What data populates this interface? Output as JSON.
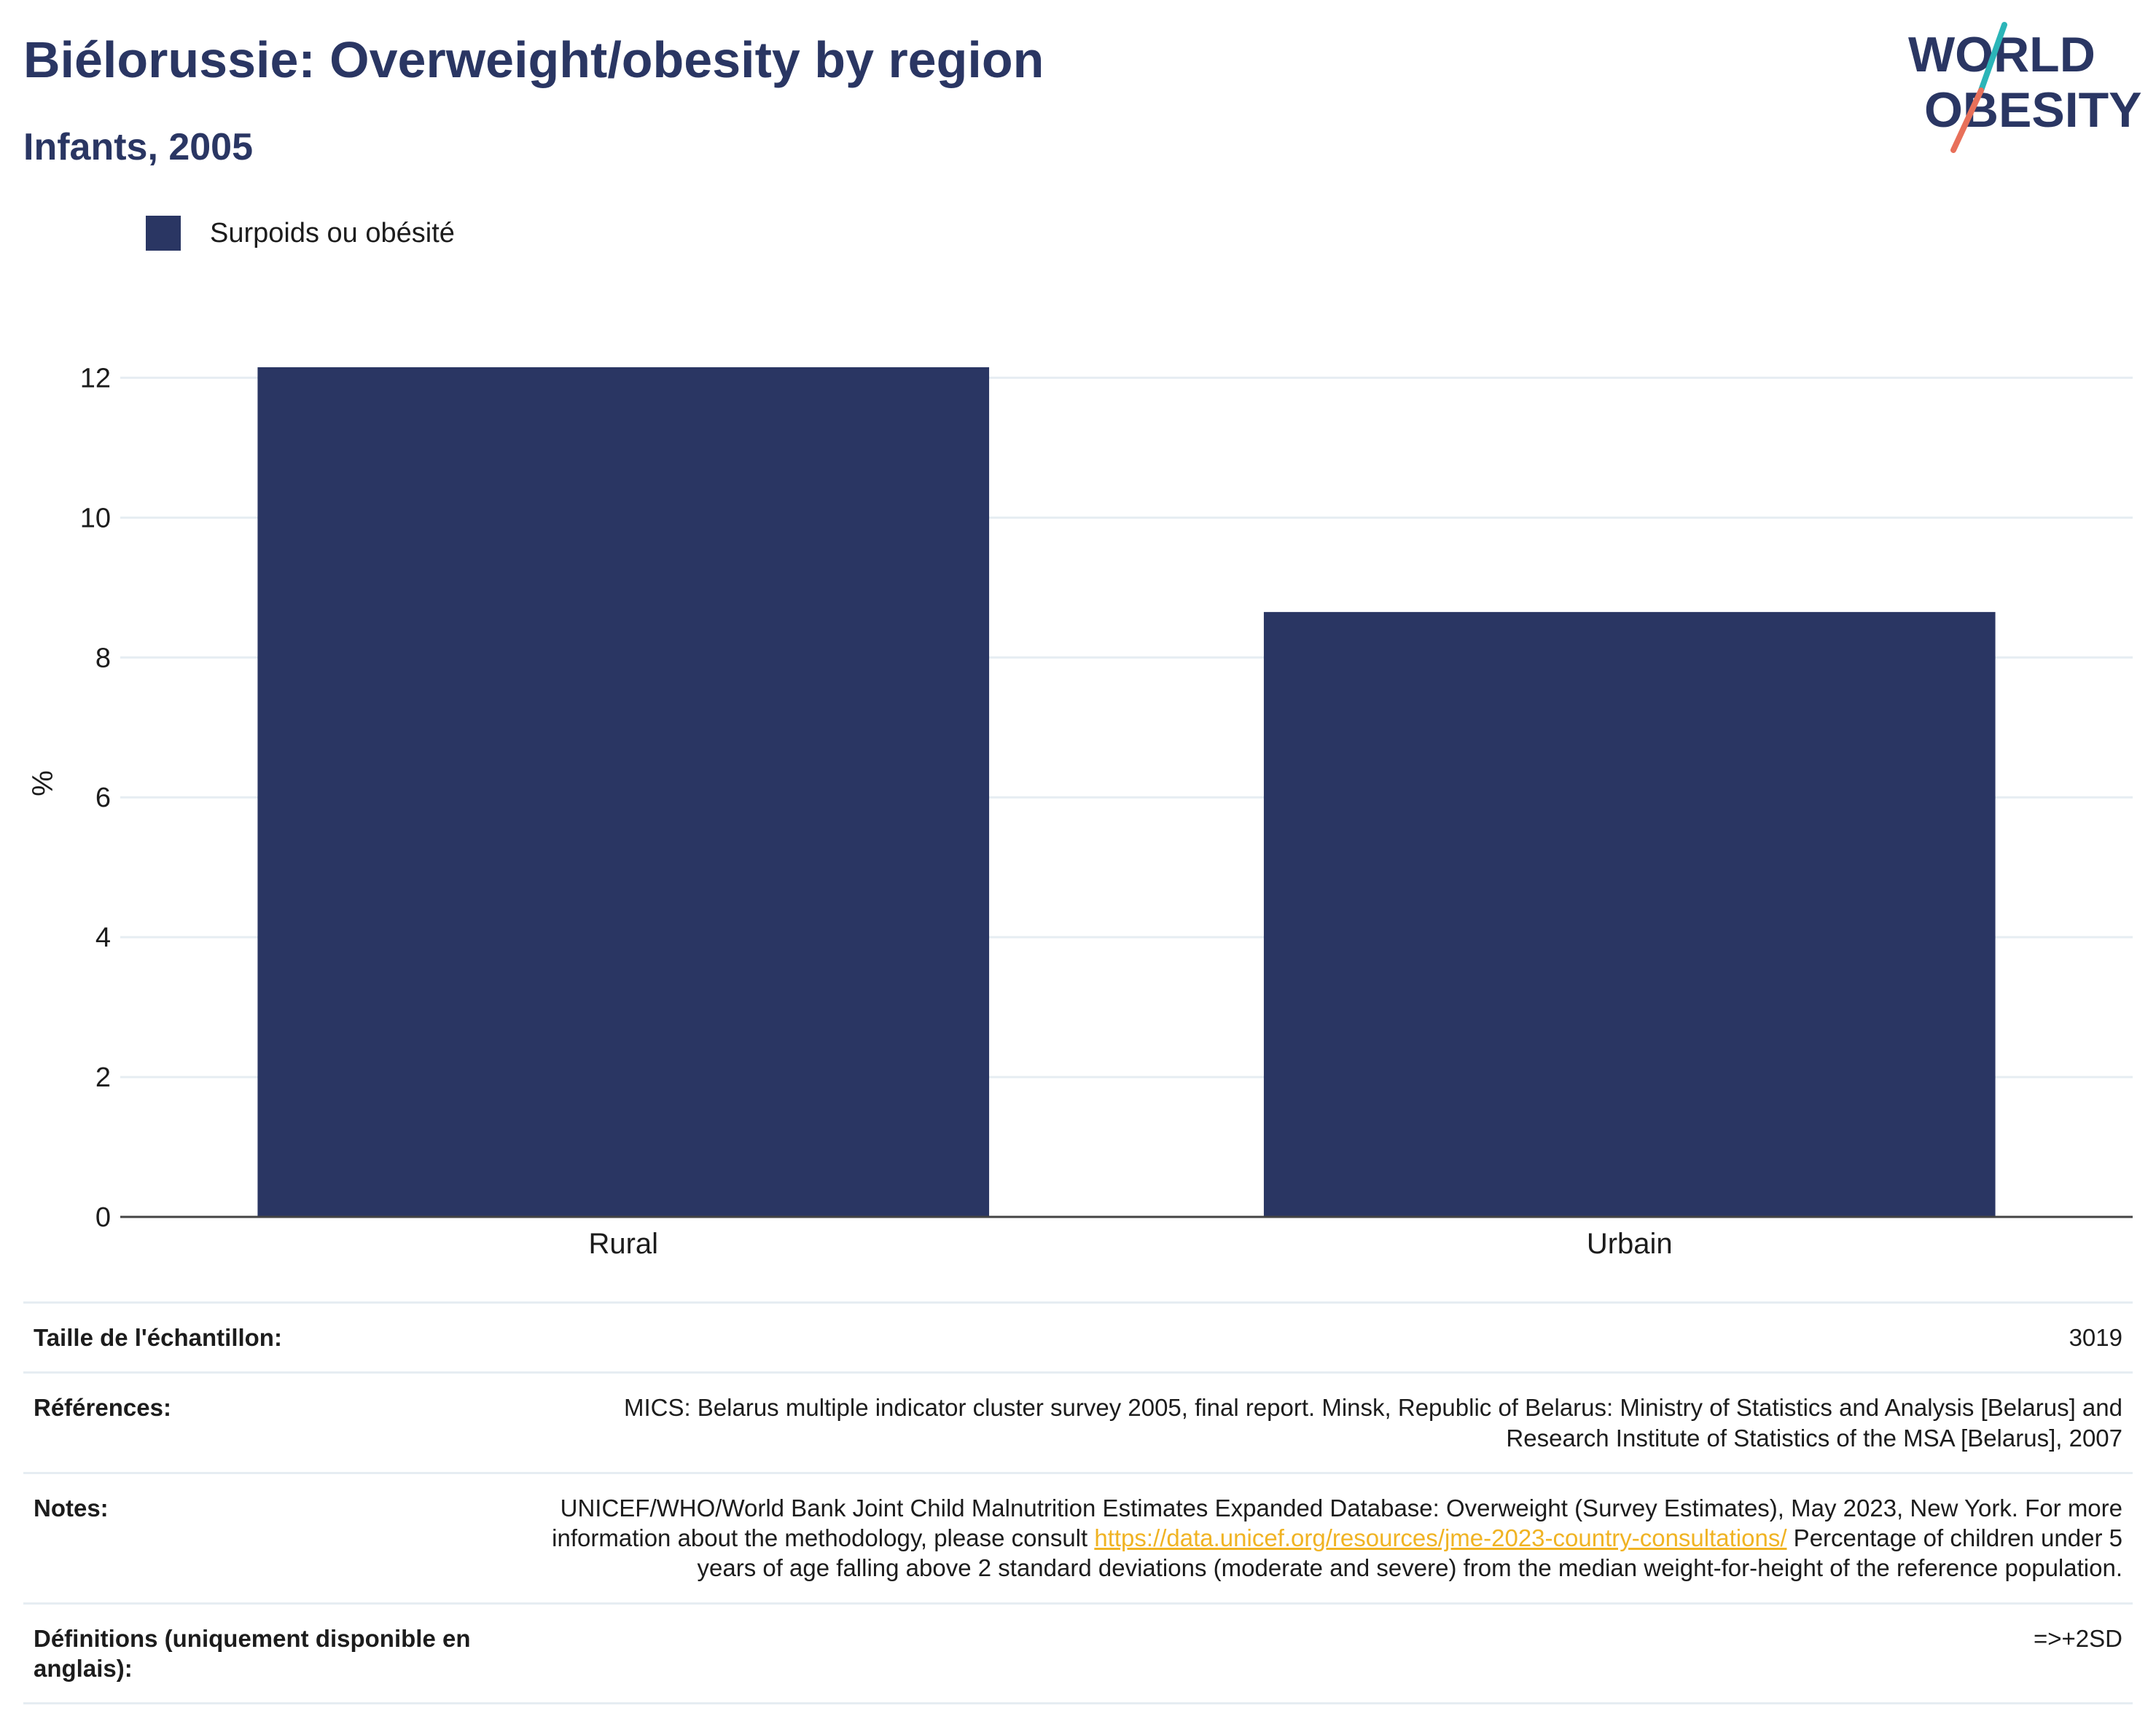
{
  "header": {
    "title": "Biélorussie: Overweight/obesity by region",
    "subtitle": "Infants, 2005"
  },
  "logo": {
    "line1": "WORLD",
    "line2": "OBESITY",
    "colors": {
      "text": "#2a3663",
      "teal": "#2bb5b8",
      "coral": "#e8705a"
    }
  },
  "colors": {
    "bar": "#2a3663",
    "grid": "#e6edf2",
    "axis": "#444444",
    "link": "#f0b323"
  },
  "chart_data": {
    "type": "bar",
    "categories": [
      "Rural",
      "Urbain"
    ],
    "series": [
      {
        "name": "Surpoids ou obésité",
        "values": [
          12.15,
          8.65
        ]
      }
    ],
    "ylabel": "%",
    "xlabel": "",
    "ylim": [
      0,
      12.4
    ],
    "yticks": [
      0,
      2,
      4,
      6,
      8,
      10,
      12
    ],
    "grid": true,
    "legend_position": "top-left"
  },
  "info": {
    "sample_size": {
      "label": "Taille de l'échantillon:",
      "value": "3019"
    },
    "references": {
      "label": "Références:",
      "value": "MICS: Belarus multiple indicator cluster survey 2005, final report. Minsk, Republic of Belarus: Ministry of Statistics and Analysis [Belarus] and Research Institute of Statistics of the MSA [Belarus], 2007"
    },
    "notes": {
      "label": "Notes:",
      "text_before": "UNICEF/WHO/World Bank Joint Child Malnutrition Estimates Expanded Database: Overweight (Survey Estimates), May 2023, New York. For more information about the methodology, please consult ",
      "link": "https://data.unicef.org/resources/jme-2023-country-consultations/",
      "text_after": " Percentage of children under 5 years of age falling above 2 standard deviations (moderate and severe) from the median weight-for-height of the reference population."
    },
    "definitions": {
      "label": "Définitions (uniquement disponible en anglais):",
      "value": "=>+2SD"
    }
  }
}
